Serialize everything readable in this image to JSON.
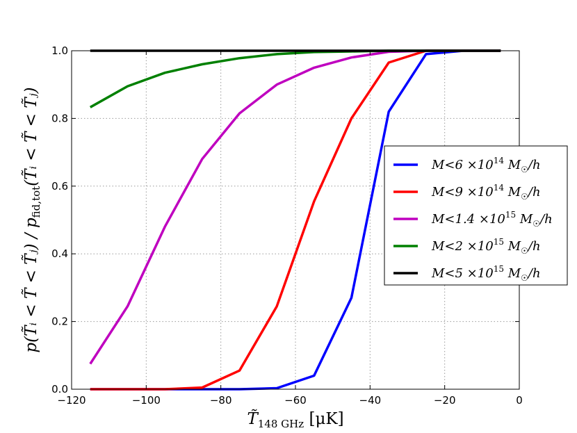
{
  "chart_data": {
    "type": "line",
    "title": "",
    "xlabel": {
      "base": "T̃",
      "sub": "148 GHz",
      "unit": " [μK]"
    },
    "ylabel": {
      "text": "p(T̃ᵢ < T̃ < T̃ⱼ) / p",
      "sub": "fid,tot",
      "tail": "(T̃ᵢ < T̃ < T̃ⱼ)"
    },
    "xlim": [
      -120,
      0
    ],
    "ylim": [
      0,
      1.0
    ],
    "xticks": [
      -120,
      -100,
      -80,
      -60,
      -40,
      -20,
      0
    ],
    "yticks": [
      0.0,
      0.2,
      0.4,
      0.6,
      0.8,
      1.0
    ],
    "xtick_labels": [
      "−120",
      "−100",
      "−80",
      "−60",
      "−40",
      "−20",
      "0"
    ],
    "ytick_labels": [
      "0.0",
      "0.2",
      "0.4",
      "0.6",
      "0.8",
      "1.0"
    ],
    "grid": true,
    "legend_position": "center-right",
    "series": [
      {
        "name": "M<6×10^14 M☉/h",
        "legend": {
          "pre": "M<6 ×10",
          "exp": "14",
          "post": " M",
          "msub": "☉",
          "tail": "/h"
        },
        "color": "#0000ff",
        "x": [
          -115,
          -105,
          -95,
          -85,
          -75,
          -65,
          -55,
          -45,
          -35,
          -25,
          -15,
          -5
        ],
        "y": [
          0.0,
          0.0,
          0.0,
          0.0,
          0.0,
          0.003,
          0.04,
          0.27,
          0.82,
          0.99,
          1.0,
          1.0
        ]
      },
      {
        "name": "M<9×10^14 M☉/h",
        "legend": {
          "pre": "M<9 ×10",
          "exp": "14",
          "post": " M",
          "msub": "☉",
          "tail": "/h"
        },
        "color": "#ff0000",
        "x": [
          -115,
          -105,
          -95,
          -85,
          -75,
          -65,
          -55,
          -45,
          -35,
          -25,
          -15,
          -5
        ],
        "y": [
          0.0,
          0.0,
          0.0,
          0.005,
          0.055,
          0.245,
          0.555,
          0.8,
          0.965,
          1.0,
          1.0,
          1.0
        ]
      },
      {
        "name": "M<1.4×10^15 M☉/h",
        "legend": {
          "pre": "M<1.4 ×10",
          "exp": "15",
          "post": " M",
          "msub": "☉",
          "tail": "/h"
        },
        "color": "#bf00bf",
        "x": [
          -115,
          -105,
          -95,
          -85,
          -75,
          -65,
          -55,
          -45,
          -35,
          -25,
          -15,
          -5
        ],
        "y": [
          0.075,
          0.245,
          0.48,
          0.68,
          0.815,
          0.9,
          0.95,
          0.98,
          0.997,
          1.0,
          1.0,
          1.0
        ]
      },
      {
        "name": "M<2×10^15 M☉/h",
        "legend": {
          "pre": "M<2 ×10",
          "exp": "15",
          "post": " M",
          "msub": "☉",
          "tail": "/h"
        },
        "color": "#008000",
        "x": [
          -115,
          -105,
          -95,
          -85,
          -75,
          -65,
          -55,
          -45,
          -35,
          -25,
          -15,
          -5
        ],
        "y": [
          0.833,
          0.895,
          0.935,
          0.96,
          0.978,
          0.99,
          0.996,
          0.998,
          1.0,
          1.0,
          1.0,
          1.0
        ]
      },
      {
        "name": "M<5×10^15 M☉/h",
        "legend": {
          "pre": "M<5 ×10",
          "exp": "15",
          "post": " M",
          "msub": "☉",
          "tail": "/h"
        },
        "color": "#000000",
        "x": [
          -115,
          -105,
          -95,
          -85,
          -75,
          -65,
          -55,
          -45,
          -35,
          -25,
          -15,
          -5
        ],
        "y": [
          1.0,
          1.0,
          1.0,
          1.0,
          1.0,
          1.0,
          1.0,
          1.0,
          1.0,
          1.0,
          1.0,
          1.0
        ]
      }
    ]
  }
}
